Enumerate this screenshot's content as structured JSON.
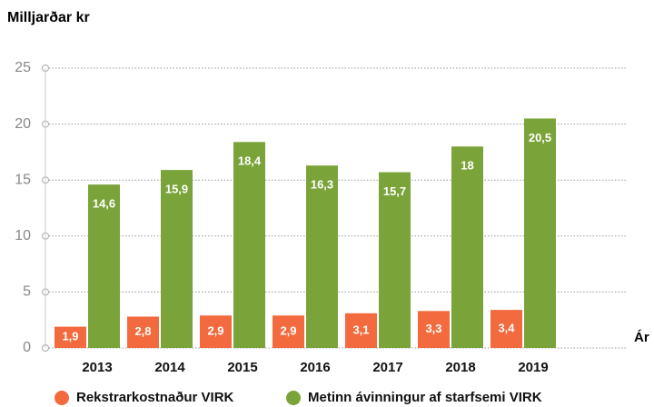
{
  "chart_data": {
    "type": "bar",
    "ylabel": "Milljarðar kr",
    "xlabel": "Ár",
    "categories": [
      "2013",
      "2014",
      "2015",
      "2016",
      "2017",
      "2018",
      "2019"
    ],
    "series": [
      {
        "name": "Rekstrarkostnaður VIRK",
        "color": "#f26a3d",
        "values": [
          1.9,
          2.8,
          2.9,
          2.9,
          3.1,
          3.3,
          3.4
        ],
        "value_labels": [
          "1,9",
          "2,8",
          "2,9",
          "2,9",
          "3,1",
          "3,3",
          "3,4"
        ]
      },
      {
        "name": "Metinn ávinningur af starfsemi VIRK",
        "color": "#7aa33a",
        "values": [
          14.6,
          15.9,
          18.4,
          16.3,
          15.7,
          18,
          20.5
        ],
        "value_labels": [
          "14,6",
          "15,9",
          "18,4",
          "16,3",
          "15,7",
          "18",
          "20,5"
        ]
      }
    ],
    "ylim": [
      0,
      25
    ],
    "yticks": [
      0,
      5,
      10,
      15,
      20,
      25
    ],
    "grid": true
  }
}
